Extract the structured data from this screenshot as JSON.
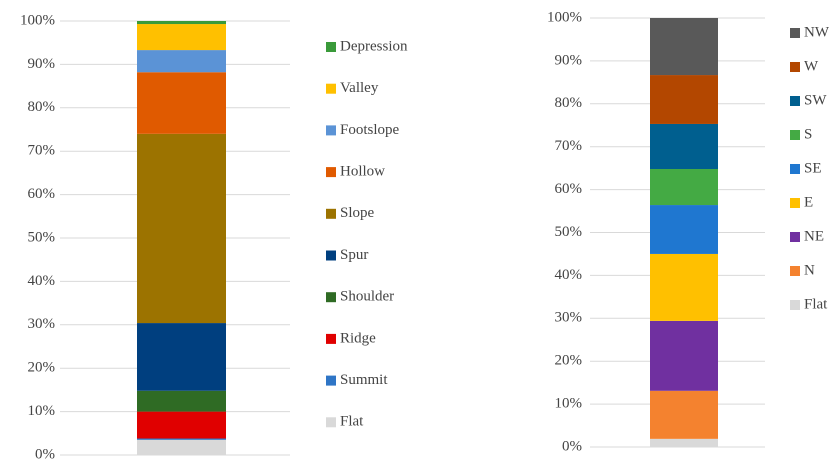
{
  "chart_data": [
    {
      "type": "stacked_bar",
      "categories": [
        null
      ],
      "ylim": [
        0,
        100
      ],
      "yticks": [
        {
          "value": 0,
          "label": "0%"
        },
        {
          "value": 10,
          "label": "10%"
        },
        {
          "value": 20,
          "label": "20%"
        },
        {
          "value": 30,
          "label": "30%"
        },
        {
          "value": 40,
          "label": "40%"
        },
        {
          "value": 50,
          "label": "50%"
        },
        {
          "value": 60,
          "label": "60%"
        },
        {
          "value": 70,
          "label": "70%"
        },
        {
          "value": 80,
          "label": "80%"
        },
        {
          "value": 90,
          "label": "90%"
        },
        {
          "value": 100,
          "label": "100%"
        }
      ],
      "grid": true,
      "series": [
        {
          "name": "Flat",
          "color": "#d9d9d9",
          "values": [
            3.5
          ]
        },
        {
          "name": "Summit",
          "color": "#2e75c6",
          "values": [
            0.3
          ]
        },
        {
          "name": "Ridge",
          "color": "#e00000",
          "values": [
            6.2
          ]
        },
        {
          "name": "Shoulder",
          "color": "#2f6b24",
          "values": [
            4.8
          ]
        },
        {
          "name": "Spur",
          "color": "#003f7f",
          "values": [
            15.6
          ]
        },
        {
          "name": "Slope",
          "color": "#9c7300",
          "values": [
            43.6
          ]
        },
        {
          "name": "Hollow",
          "color": "#e05a00",
          "values": [
            14.2
          ]
        },
        {
          "name": "Footslope",
          "color": "#5b93d6",
          "values": [
            5.1
          ]
        },
        {
          "name": "Valley",
          "color": "#ffc000",
          "values": [
            6.0
          ]
        },
        {
          "name": "Depression",
          "color": "#3a9a3a",
          "values": [
            0.7
          ]
        }
      ]
    },
    {
      "type": "stacked_bar",
      "categories": [
        null
      ],
      "ylim": [
        0,
        100
      ],
      "yticks": [
        {
          "value": 0,
          "label": "0%"
        },
        {
          "value": 10,
          "label": "10%"
        },
        {
          "value": 20,
          "label": "20%"
        },
        {
          "value": 30,
          "label": "30%"
        },
        {
          "value": 40,
          "label": "40%"
        },
        {
          "value": 50,
          "label": "50%"
        },
        {
          "value": 60,
          "label": "60%"
        },
        {
          "value": 70,
          "label": "70%"
        },
        {
          "value": 80,
          "label": "80%"
        },
        {
          "value": 90,
          "label": "90%"
        },
        {
          "value": 100,
          "label": "100%"
        }
      ],
      "grid": true,
      "series": [
        {
          "name": "Flat",
          "color": "#d9d9d9",
          "values": [
            1.9
          ]
        },
        {
          "name": "N",
          "color": "#f4822f",
          "values": [
            11.2
          ]
        },
        {
          "name": "NE",
          "color": "#7030a0",
          "values": [
            16.3
          ]
        },
        {
          "name": "E",
          "color": "#ffc000",
          "values": [
            15.6
          ]
        },
        {
          "name": "SE",
          "color": "#1f77d0",
          "values": [
            11.4
          ]
        },
        {
          "name": "S",
          "color": "#44aa44",
          "values": [
            8.4
          ]
        },
        {
          "name": "SW",
          "color": "#005f8f",
          "values": [
            10.5
          ]
        },
        {
          "name": "W",
          "color": "#b34700",
          "values": [
            11.4
          ]
        },
        {
          "name": "NW",
          "color": "#595959",
          "values": [
            13.3
          ]
        }
      ]
    }
  ]
}
